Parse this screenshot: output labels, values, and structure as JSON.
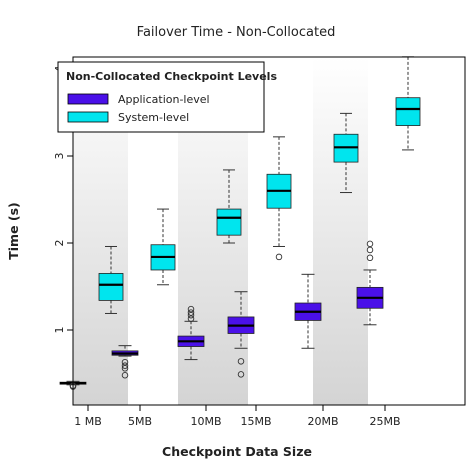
{
  "chart_data": {
    "type": "box",
    "title": "Failover Time - Non-Collocated",
    "xlabel": "Checkpoint Data Size",
    "ylabel": "Time (s)",
    "categories": [
      "1 MB",
      "5MB",
      "10MB",
      "15MB",
      "20MB",
      "25MB"
    ],
    "ylim": [
      0,
      4
    ],
    "yticks": [
      1,
      2,
      3,
      4
    ],
    "legend": {
      "title": "Non-Collocated Checkpoint Levels",
      "placement": "top-left"
    },
    "series": [
      {
        "name": "Application-level",
        "color": "#4A10E8",
        "boxes": [
          {
            "category": "1 MB",
            "min": 0.37,
            "q1": 0.38,
            "median": 0.39,
            "q3": 0.4,
            "max": 0.41,
            "outliers": [
              0.35,
              0.36
            ]
          },
          {
            "category": "5MB",
            "min": 0.7,
            "q1": 0.71,
            "median": 0.73,
            "q3": 0.76,
            "max": 0.82,
            "outliers": [
              0.63,
              0.59,
              0.56,
              0.48
            ]
          },
          {
            "category": "10MB",
            "min": 0.66,
            "q1": 0.81,
            "median": 0.87,
            "q3": 0.93,
            "max": 1.1,
            "outliers": [
              1.13,
              1.17,
              1.2,
              1.24
            ]
          },
          {
            "category": "15MB",
            "min": 0.79,
            "q1": 0.96,
            "median": 1.05,
            "q3": 1.15,
            "max": 1.44,
            "outliers": [
              0.64,
              0.49
            ]
          },
          {
            "category": "20MB",
            "min": 0.79,
            "q1": 1.11,
            "median": 1.21,
            "q3": 1.31,
            "max": 1.64,
            "outliers": []
          },
          {
            "category": "25MB",
            "min": 1.06,
            "q1": 1.25,
            "median": 1.37,
            "q3": 1.49,
            "max": 1.69,
            "outliers": [
              1.83,
              1.92,
              1.99
            ]
          }
        ]
      },
      {
        "name": "System-level",
        "color": "#00E5EE",
        "boxes": [
          {
            "category": "1 MB",
            "min": 1.19,
            "q1": 1.34,
            "median": 1.52,
            "q3": 1.65,
            "max": 1.96,
            "outliers": []
          },
          {
            "category": "5MB",
            "min": 1.52,
            "q1": 1.69,
            "median": 1.84,
            "q3": 1.98,
            "max": 2.39,
            "outliers": []
          },
          {
            "category": "10MB",
            "min": 2.0,
            "q1": 2.09,
            "median": 2.29,
            "q3": 2.39,
            "max": 2.84,
            "outliers": []
          },
          {
            "category": "15MB",
            "min": 1.96,
            "q1": 2.4,
            "median": 2.6,
            "q3": 2.79,
            "max": 3.22,
            "outliers": [
              1.84
            ]
          },
          {
            "category": "20MB",
            "min": 2.58,
            "q1": 2.93,
            "median": 3.1,
            "q3": 3.25,
            "max": 3.49,
            "outliers": []
          },
          {
            "category": "25MB",
            "min": 3.07,
            "q1": 3.35,
            "median": 3.54,
            "q3": 3.67,
            "max": 4.14,
            "outliers": []
          }
        ]
      }
    ]
  }
}
